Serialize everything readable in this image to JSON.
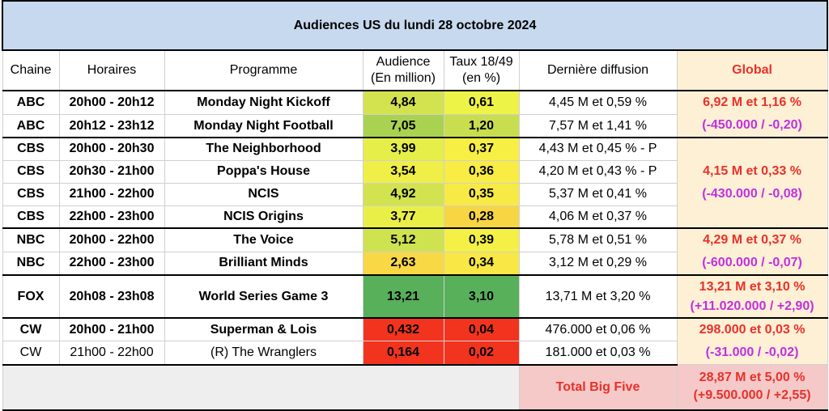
{
  "title": "Audiences US du lundi 28 octobre 2024",
  "headers": {
    "chaine": "Chaine",
    "horaires": "Horaires",
    "programme": "Programme",
    "audience_l1": "Audience",
    "audience_l2": "(En million)",
    "taux_l1": "Taux 18/49",
    "taux_l2": "(en %)",
    "derniere": "Dernière diffusion",
    "global": "Global"
  },
  "rows": [
    {
      "chaine": "ABC",
      "horaires": "20h00 - 20h12",
      "programme": "Monday Night Kickoff",
      "audience": "4,84",
      "taux": "0,61",
      "derniere": "4,45 M et 0,59 %",
      "aud_color": "#d3e34f",
      "taux_color": "#eef347"
    },
    {
      "chaine": "ABC",
      "horaires": "20h12 - 23h12",
      "programme": "Monday Night Football",
      "audience": "7,05",
      "taux": "1,20",
      "derniere": "7,57 M et 1,41 %",
      "aud_color": "#aad251",
      "taux_color": "#c8de4f"
    },
    {
      "chaine": "CBS",
      "horaires": "20h00 - 20h30",
      "programme": "The Neighborhood",
      "audience": "3,99",
      "taux": "0,37",
      "derniere": "4,43 M et 0,45 % - P",
      "aud_color": "#e6ee4a",
      "taux_color": "#f8ef45"
    },
    {
      "chaine": "CBS",
      "horaires": "20h30 - 21h00",
      "programme": "Poppa's House",
      "audience": "3,54",
      "taux": "0,36",
      "derniere": "4,20 M et 0,43 % - P",
      "aud_color": "#efef47",
      "taux_color": "#f8ec45"
    },
    {
      "chaine": "CBS",
      "horaires": "21h00 - 22h00",
      "programme": "NCIS",
      "audience": "4,92",
      "taux": "0,35",
      "derniere": "5,37 M et 0,41 %",
      "aud_color": "#d2e34f",
      "taux_color": "#f8ea45"
    },
    {
      "chaine": "CBS",
      "horaires": "22h00 - 23h00",
      "programme": "NCIS Origins",
      "audience": "3,77",
      "taux": "0,28",
      "derniere": "4,06 M et 0,37 %",
      "aud_color": "#eaef48",
      "taux_color": "#f8d543"
    },
    {
      "chaine": "NBC",
      "horaires": "20h00 - 22h00",
      "programme": "The Voice",
      "audience": "5,12",
      "taux": "0,39",
      "derniere": "5,78 M et 0,51 %",
      "aud_color": "#cfe24f",
      "taux_color": "#f4f046"
    },
    {
      "chaine": "NBC",
      "horaires": "22h00 - 23h00",
      "programme": "Brilliant Minds",
      "audience": "2,63",
      "taux": "0,34",
      "derniere": "3,12 M et 0,29 %",
      "aud_color": "#f8d845",
      "taux_color": "#f8e745"
    },
    {
      "chaine": "FOX",
      "horaires": "20h08 - 23h08",
      "programme": "World Series Game 3",
      "audience": "13,21",
      "taux": "3,10",
      "derniere": "13,71 M et 3,20 %",
      "aud_color": "#58b05a",
      "taux_color": "#58b05a"
    },
    {
      "chaine": "CW",
      "horaires": "20h00 - 21h00",
      "programme": "Superman & Lois",
      "audience": "0,432",
      "taux": "0,04",
      "derniere": "476.000 et 0,06 %",
      "aud_color": "#f2341f",
      "taux_color": "#f2341f"
    },
    {
      "chaine": "CW",
      "horaires": "21h00 - 22h00",
      "programme": "(R) The Wranglers",
      "audience": "0,164",
      "taux": "0,02",
      "derniere": "181.000 et 0,03 %",
      "aud_color": "#f2341f",
      "taux_color": "#f2341f"
    }
  ],
  "globals": {
    "abc": {
      "main": "6,92 M et 1,16 %",
      "diff": "(-450.000 / -0,20)"
    },
    "cbs": {
      "main": "4,15 M et 0,33 %",
      "diff": "(-430.000 / -0,08)"
    },
    "nbc": {
      "main": "4,29 M et 0,37 %",
      "diff": "(-600.000 / -0,07)"
    },
    "fox": {
      "main": "13,21 M et 3,10 %",
      "diff": "(+11.020.000 / +2,90)"
    },
    "cw": {
      "main": "298.000 et 0,03 %",
      "diff": "(-31.000 / -0,02)"
    }
  },
  "total": {
    "label": "Total Big Five",
    "main": "28,87 M et 5,00 %",
    "diff": "(+9.500.000 / +2,55)"
  }
}
